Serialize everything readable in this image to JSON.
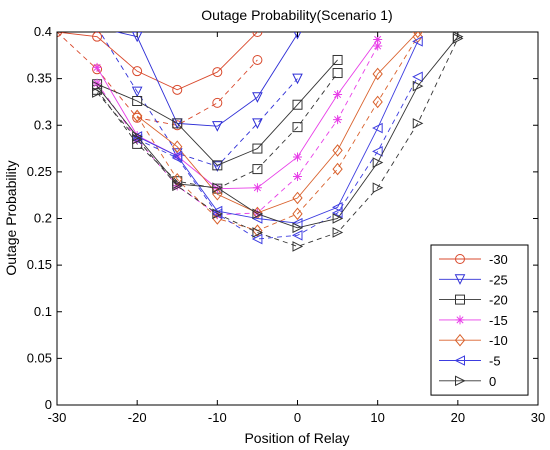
{
  "chart_data": {
    "type": "line",
    "title": "Outage Probability(Scenario 1)",
    "xlabel": "Position of Relay",
    "ylabel": "Outage Probability",
    "xlim": [
      -30,
      30
    ],
    "ylim": [
      0,
      0.4
    ],
    "xticks": [
      -30,
      -20,
      -10,
      0,
      10,
      20,
      30
    ],
    "yticks": [
      0,
      0.05,
      0.1,
      0.15,
      0.2,
      0.25,
      0.3,
      0.35,
      0.4
    ],
    "grid": false,
    "legend_position": "bottom-right",
    "series": [
      {
        "name": "-30",
        "color": "#d9492c",
        "marker": "circle",
        "x": [
          -30,
          -25,
          -20,
          -15,
          -10,
          -5
        ],
        "solid": [
          0.4,
          0.395,
          0.358,
          0.338,
          0.357,
          0.4
        ],
        "dashed": [
          0.4,
          0.36,
          0.308,
          0.3,
          0.324,
          0.37
        ]
      },
      {
        "name": "-25",
        "color": "#2e2ed6",
        "marker": "triangle-down",
        "x": [
          -25,
          -20,
          -15,
          -10,
          -5,
          0
        ],
        "solid": [
          0.405,
          0.395,
          0.302,
          0.299,
          0.33,
          0.398
        ],
        "dashed": [
          0.405,
          0.336,
          0.27,
          0.256,
          0.302,
          0.35
        ]
      },
      {
        "name": "-20",
        "color": "#333333",
        "marker": "square",
        "x": [
          -25,
          -20,
          -15,
          -10,
          -5,
          0,
          5
        ],
        "solid": [
          0.344,
          0.326,
          0.302,
          0.257,
          0.275,
          0.322,
          0.37
        ],
        "dashed": [
          0.338,
          0.28,
          0.24,
          0.232,
          0.253,
          0.298,
          0.356
        ]
      },
      {
        "name": "-15",
        "color": "#e83ee8",
        "marker": "asterisk",
        "x": [
          -25,
          -20,
          -15,
          -10,
          -5,
          0,
          5,
          10
        ],
        "solid": [
          0.362,
          0.289,
          0.267,
          0.232,
          0.233,
          0.266,
          0.333,
          0.392
        ],
        "dashed": [
          0.345,
          0.285,
          0.235,
          0.204,
          0.206,
          0.245,
          0.306,
          0.385
        ]
      },
      {
        "name": "-10",
        "color": "#d9612c",
        "marker": "diamond",
        "x": [
          -20,
          -15,
          -10,
          -5,
          0,
          5,
          10,
          15
        ],
        "solid": [
          0.31,
          0.277,
          0.226,
          0.206,
          0.222,
          0.273,
          0.355,
          0.4
        ],
        "dashed": [
          0.31,
          0.242,
          0.2,
          0.187,
          0.205,
          0.253,
          0.325,
          0.395
        ]
      },
      {
        "name": "-5",
        "color": "#3c3ce0",
        "marker": "triangle-left",
        "x": [
          -20,
          -15,
          -10,
          -5,
          0,
          5,
          10,
          15
        ],
        "solid": [
          0.288,
          0.267,
          0.208,
          0.2,
          0.195,
          0.212,
          0.297,
          0.39
        ],
        "dashed": [
          0.285,
          0.265,
          0.205,
          0.178,
          0.182,
          0.206,
          0.272,
          0.352
        ]
      },
      {
        "name": "0",
        "color": "#333333",
        "marker": "triangle-right",
        "x": [
          -25,
          -20,
          -15,
          -10,
          -5,
          0,
          5,
          10,
          15,
          20
        ],
        "solid": [
          0.342,
          0.288,
          0.237,
          0.233,
          0.205,
          0.19,
          0.2,
          0.26,
          0.342,
          0.395
        ],
        "dashed": [
          0.335,
          0.285,
          0.235,
          0.205,
          0.185,
          0.17,
          0.185,
          0.233,
          0.302,
          0.393
        ]
      }
    ]
  }
}
